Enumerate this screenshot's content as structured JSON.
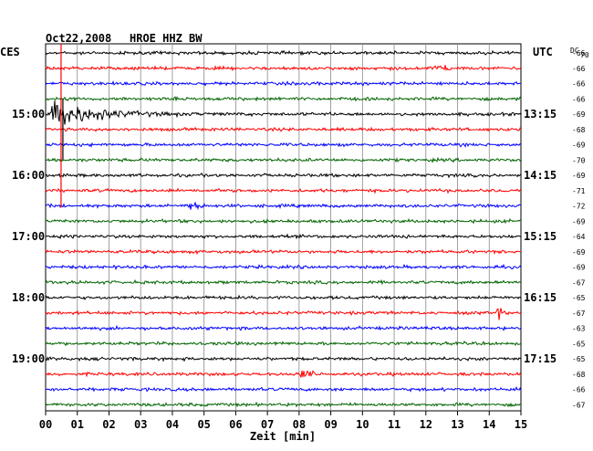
{
  "header": {
    "date": "Oct22,2008",
    "station": "HROE HHZ BW",
    "left_tz": "CES",
    "right_tz": "UTC",
    "dc_label": "DC",
    "dc_sub": "70"
  },
  "chart_data": {
    "type": "line",
    "xlabel": "Zeit [min]",
    "x_ticks": [
      "00",
      "01",
      "02",
      "03",
      "04",
      "05",
      "06",
      "07",
      "08",
      "09",
      "10",
      "11",
      "12",
      "13",
      "14",
      "15"
    ],
    "xlim": [
      0,
      15
    ],
    "left_hour_labels": [
      {
        "row": 4,
        "text": "15:00"
      },
      {
        "row": 8,
        "text": "16:00"
      },
      {
        "row": 12,
        "text": "17:00"
      },
      {
        "row": 16,
        "text": "18:00"
      },
      {
        "row": 20,
        "text": "19:00"
      }
    ],
    "right_hour_labels": [
      {
        "row": 4,
        "text": "13:15"
      },
      {
        "row": 8,
        "text": "14:15"
      },
      {
        "row": 12,
        "text": "15:15"
      },
      {
        "row": 16,
        "text": "16:15"
      },
      {
        "row": 20,
        "text": "17:15"
      }
    ],
    "trace_colors": [
      "#000000",
      "#ff0000",
      "#0000ff",
      "#006400"
    ],
    "dc_offsets": [
      "-66",
      "-66",
      "-66",
      "-66",
      "-69",
      "-68",
      "-69",
      "-70",
      "-69",
      "-71",
      "-72",
      "-69",
      "-64",
      "-69",
      "-69",
      "-67",
      "-65",
      "-67",
      "-63",
      "-65",
      "-65",
      "-68",
      "-66",
      "-67"
    ],
    "events": [
      {
        "row": 4,
        "minute": 0.2,
        "type": "earthquake"
      },
      {
        "row": 10,
        "minute": 4.7,
        "type": "burst"
      },
      {
        "row": 17,
        "minute": 14.3,
        "type": "spike"
      },
      {
        "row": 21,
        "minute": 8.2,
        "type": "burst"
      },
      {
        "row": 1,
        "minute": 12.5,
        "type": "burst"
      }
    ]
  }
}
